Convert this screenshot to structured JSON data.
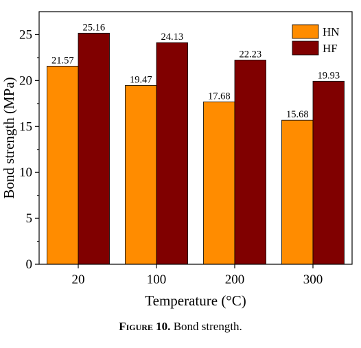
{
  "chart_data": {
    "type": "bar",
    "title": "",
    "xlabel": "Temperature (°C)",
    "ylabel": "Bond strength (MPa)",
    "categories": [
      "20",
      "100",
      "200",
      "300"
    ],
    "series": [
      {
        "name": "HN",
        "color": "#ff8c00",
        "values": [
          21.57,
          19.47,
          17.68,
          15.68
        ],
        "labels": [
          "21.57",
          "19.47",
          "17.68",
          "15.68"
        ]
      },
      {
        "name": "HF",
        "color": "#800000",
        "values": [
          25.16,
          24.13,
          22.23,
          19.93
        ],
        "labels": [
          "25.16",
          "24.13",
          "22.23",
          "19.93"
        ]
      }
    ],
    "ylim": [
      0,
      27.5
    ],
    "yticks": [
      "0",
      "5",
      "10",
      "15",
      "20",
      "25"
    ],
    "legend": "top-right",
    "grid": false
  },
  "caption": {
    "figure_label": "Figure 10.",
    "text": " Bond strength."
  }
}
